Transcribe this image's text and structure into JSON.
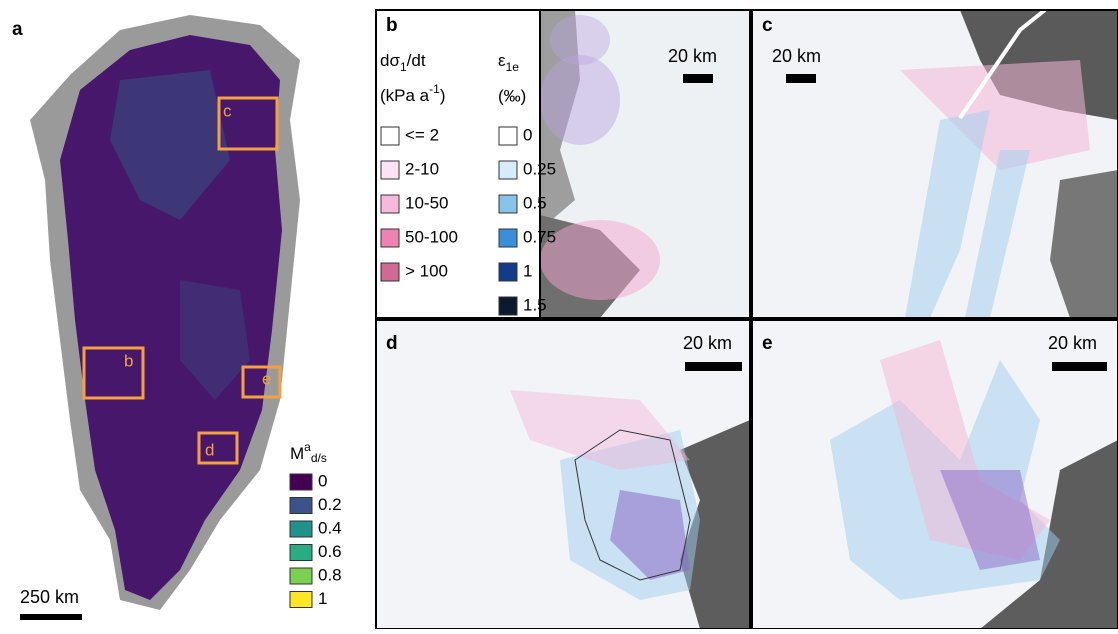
{
  "panel_a": {
    "label": "a",
    "boxes": [
      "c",
      "b",
      "e",
      "d"
    ],
    "scale_bar": "250 km",
    "legend": {
      "title": {
        "main": "M",
        "sup": "a",
        "sub": "d/s"
      },
      "entries": [
        {
          "label": "0",
          "color": "#440154"
        },
        {
          "label": "0.2",
          "color": "#3b528b"
        },
        {
          "label": "0.4",
          "color": "#21918c"
        },
        {
          "label": "0.6",
          "color": "#27ad81"
        },
        {
          "label": "0.8",
          "color": "#7ad151"
        },
        {
          "label": "1",
          "color": "#fde725"
        }
      ]
    }
  },
  "panel_b": {
    "label": "b",
    "scale_bar": "20 km",
    "stress_legend": {
      "title": {
        "main": "dσ",
        "sub": "1",
        "rest": "/dt"
      },
      "units": {
        "main": "(kPa a",
        "sup": "-1",
        "rest": ")"
      },
      "entries": [
        {
          "label": "<= 2",
          "color": "#ffffff"
        },
        {
          "label": "2-10",
          "color": "#fbe3f3"
        },
        {
          "label": "10-50",
          "color": "#f8b8dc"
        },
        {
          "label": "50-100",
          "color": "#ee82b4"
        },
        {
          "label": "> 100",
          "color": "#d06a94"
        }
      ]
    },
    "strain_legend": {
      "title": {
        "main": "ε",
        "sub": "1e"
      },
      "units": "(‰)",
      "entries": [
        {
          "label": "0",
          "color": "#ffffff"
        },
        {
          "label": "0.25",
          "color": "#d6ecf8"
        },
        {
          "label": "0.5",
          "color": "#88c3ea"
        },
        {
          "label": "0.75",
          "color": "#3a8fd6"
        },
        {
          "label": "1",
          "color": "#103c88"
        },
        {
          "label": "1.5",
          "color": "#0b1a2e"
        }
      ]
    }
  },
  "panel_c": {
    "label": "c",
    "scale_bar": "20 km"
  },
  "panel_d": {
    "label": "d",
    "scale_bar": "20 km"
  },
  "panel_e": {
    "label": "e",
    "scale_bar": "20 km"
  }
}
